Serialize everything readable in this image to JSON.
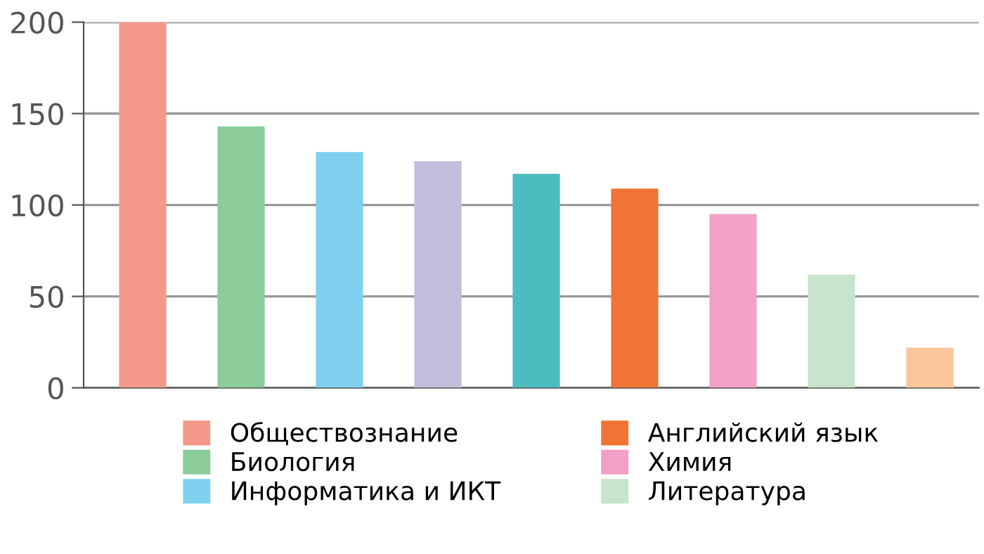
{
  "chart_data": {
    "type": "bar",
    "categories": [
      null,
      null,
      null,
      null,
      null,
      null,
      null,
      null,
      null
    ],
    "series": [
      {
        "name": "Обществознание",
        "color": "#f4998a",
        "values": [
          200,
          null,
          null,
          null,
          null,
          null,
          null,
          null,
          null
        ]
      },
      {
        "name": "Биология",
        "color": "#8ccc9a",
        "values": [
          null,
          143,
          null,
          null,
          null,
          null,
          null,
          null,
          null
        ]
      },
      {
        "name": "Информатика и ИКТ",
        "color": "#7fd0ef",
        "values": [
          null,
          null,
          129,
          null,
          null,
          null,
          null,
          null,
          null
        ]
      },
      {
        "color": "#c4bcdc",
        "values": [
          null,
          null,
          null,
          124,
          null,
          null,
          null,
          null,
          null
        ]
      },
      {
        "color": "#4bbcc0",
        "values": [
          null,
          null,
          null,
          null,
          117,
          null,
          null,
          null,
          null
        ]
      },
      {
        "name": "Английский язык",
        "color": "#f07535",
        "values": [
          null,
          null,
          null,
          null,
          null,
          109,
          null,
          null,
          null
        ]
      },
      {
        "name": "Химия",
        "color": "#f2a0c8",
        "values": [
          null,
          null,
          null,
          null,
          null,
          null,
          95,
          null,
          null
        ]
      },
      {
        "name": "Литература",
        "color": "#c8e4cc",
        "values": [
          null,
          null,
          null,
          null,
          null,
          null,
          null,
          62,
          null
        ]
      },
      {
        "color": "#fdc59a",
        "values": [
          null,
          null,
          null,
          null,
          null,
          null,
          null,
          null,
          22
        ]
      }
    ],
    "ylim": [
      0,
      200
    ],
    "yticks": [
      0,
      50,
      100,
      150,
      200
    ],
    "grid": "y",
    "legend": "bottom"
  }
}
